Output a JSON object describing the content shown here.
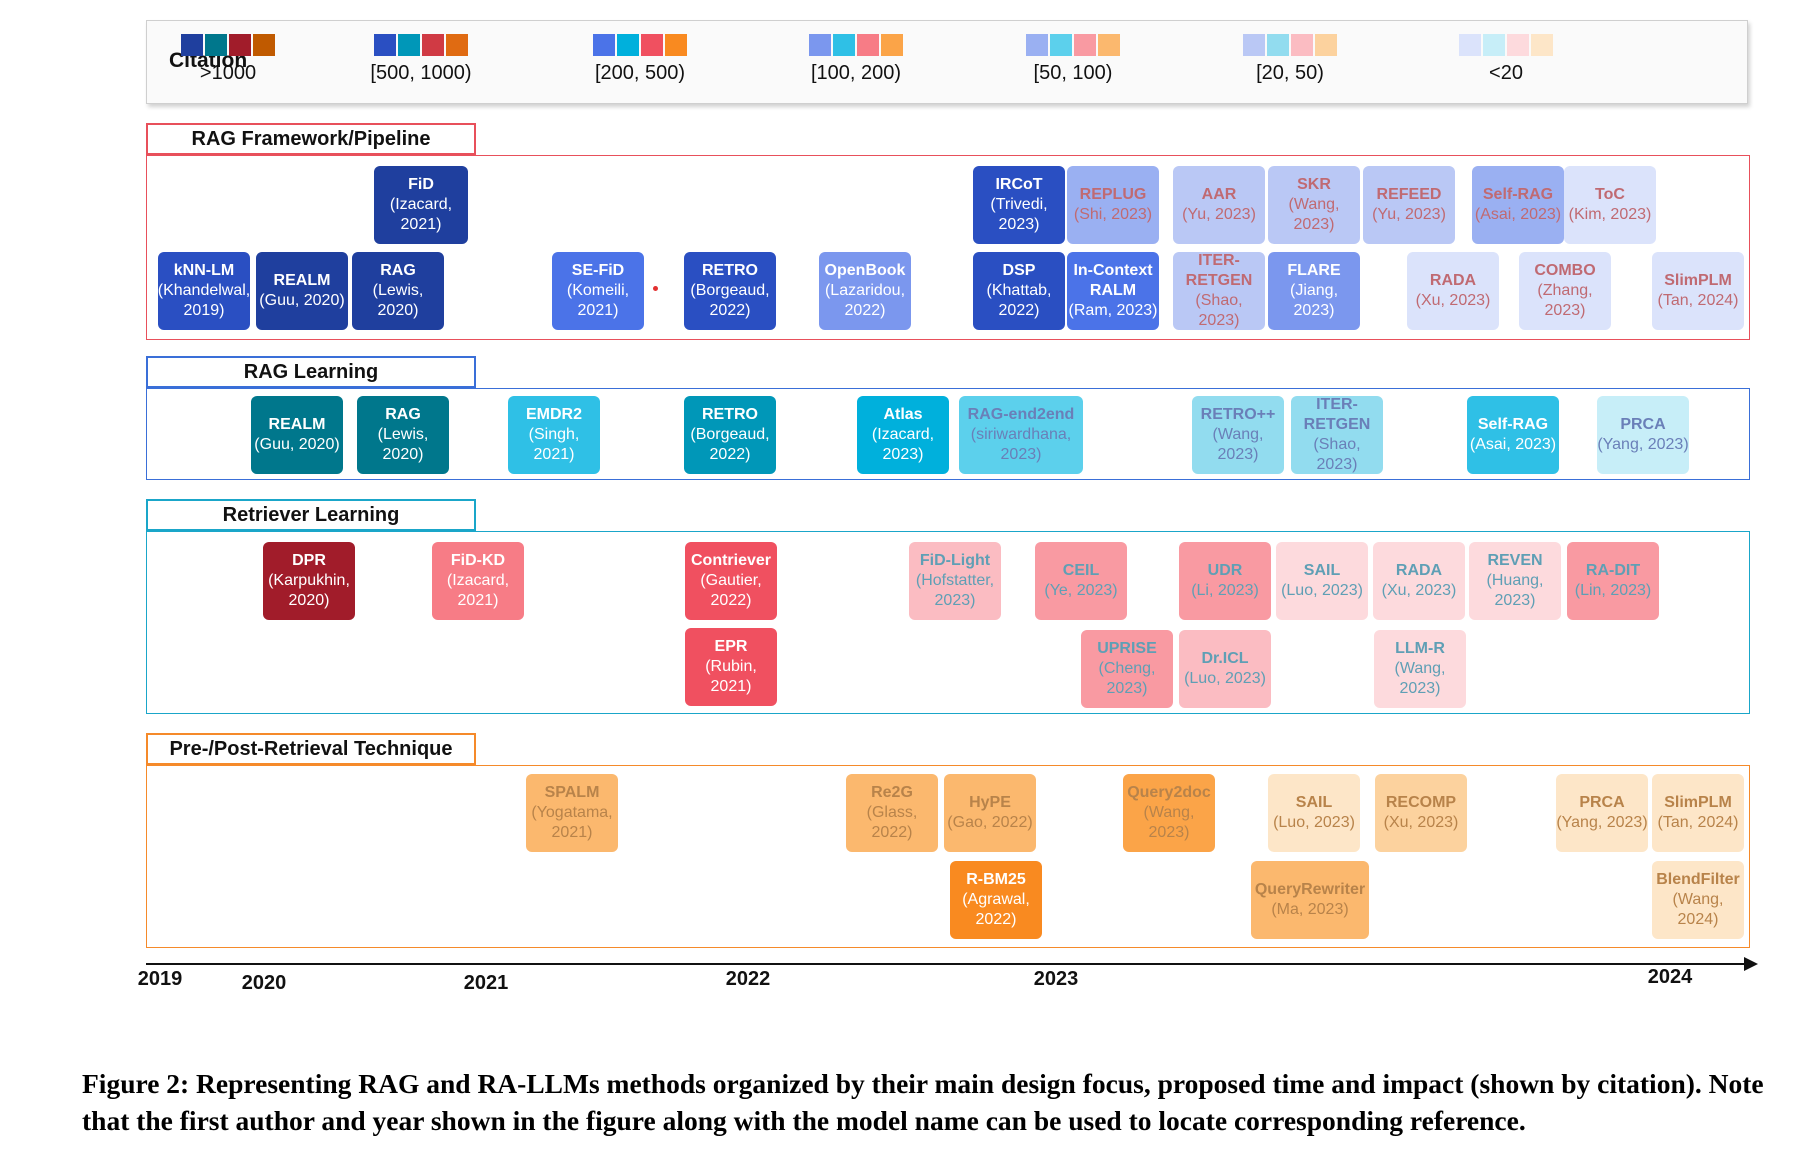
{
  "legend": {
    "title": "Citation",
    "tiers": [
      {
        "label": ">1000",
        "colors": [
          "#1f3f9e",
          "#00778c",
          "#a11c2a",
          "#c05a00"
        ]
      },
      {
        "label": "[500, 1000)",
        "colors": [
          "#2a4fc2",
          "#0097b8",
          "#d03a44",
          "#e06b12"
        ]
      },
      {
        "label": "[200, 500)",
        "colors": [
          "#4b73e8",
          "#00b0dc",
          "#f05060",
          "#f98a20"
        ]
      },
      {
        "label": "[100, 200)",
        "colors": [
          "#7b97ee",
          "#2fc0e6",
          "#f77c86",
          "#fba448"
        ]
      },
      {
        "label": "[50, 100)",
        "colors": [
          "#9ab0f2",
          "#5cd0ec",
          "#f99aa2",
          "#fbb86e"
        ]
      },
      {
        "label": "[20, 50)",
        "colors": [
          "#bac8f5",
          "#92dcef",
          "#fbbcc2",
          "#fcd29e"
        ]
      },
      {
        "label": "<20",
        "colors": [
          "#dbe3fb",
          "#c7eef8",
          "#fddadd",
          "#fde6c8"
        ]
      }
    ]
  },
  "sections": [
    {
      "title": "RAG Framework/Pipeline",
      "color": "#e8505b",
      "nodes": [
        {
          "name": "FiD",
          "ref": "(Izacard, 2021)",
          "tier": 0
        },
        {
          "name": "kNN-LM",
          "ref": "(Khandelwal, 2019)",
          "tier": 1
        },
        {
          "name": "REALM",
          "ref": "(Guu, 2020)",
          "tier": 0
        },
        {
          "name": "RAG",
          "ref": "(Lewis, 2020)",
          "tier": 0
        },
        {
          "name": "SE-FiD",
          "ref": "(Komeili, 2021)",
          "tier": 2
        },
        {
          "name": "RETRO",
          "ref": "(Borgeaud, 2022)",
          "tier": 1
        },
        {
          "name": "OpenBook",
          "ref": "(Lazaridou, 2022)",
          "tier": 3
        },
        {
          "name": "IRCoT",
          "ref": "(Trivedi, 2023)",
          "tier": 1
        },
        {
          "name": "DSP",
          "ref": "(Khattab, 2022)",
          "tier": 1
        },
        {
          "name": "REPLUG",
          "ref": "(Shi, 2023)",
          "tier": 4
        },
        {
          "name": "In-Context RALM",
          "ref": "(Ram, 2023)",
          "tier": 2
        },
        {
          "name": "AAR",
          "ref": "(Yu, 2023)",
          "tier": 5
        },
        {
          "name": "ITER-RETGEN",
          "ref": "(Shao, 2023)",
          "tier": 5
        },
        {
          "name": "SKR",
          "ref": "(Wang, 2023)",
          "tier": 5
        },
        {
          "name": "FLARE",
          "ref": "(Jiang, 2023)",
          "tier": 3
        },
        {
          "name": "REFEED",
          "ref": "(Yu, 2023)",
          "tier": 5
        },
        {
          "name": "RADA",
          "ref": "(Xu, 2023)",
          "tier": 6
        },
        {
          "name": "Self-RAG",
          "ref": "(Asai, 2023)",
          "tier": 4
        },
        {
          "name": "ToC",
          "ref": "(Kim, 2023)",
          "tier": 6
        },
        {
          "name": "COMBO",
          "ref": "(Zhang, 2023)",
          "tier": 6
        },
        {
          "name": "SlimPLM",
          "ref": "(Tan, 2024)",
          "tier": 6
        }
      ]
    },
    {
      "title": "RAG Learning",
      "color": "#3a6fd8",
      "nodes": [
        {
          "name": "REALM",
          "ref": "(Guu, 2020)",
          "tier": 0
        },
        {
          "name": "RAG",
          "ref": "(Lewis, 2020)",
          "tier": 0
        },
        {
          "name": "EMDR2",
          "ref": "(Singh, 2021)",
          "tier": 3
        },
        {
          "name": "RETRO",
          "ref": "(Borgeaud, 2022)",
          "tier": 1
        },
        {
          "name": "Atlas",
          "ref": "(Izacard, 2023)",
          "tier": 2
        },
        {
          "name": "RAG-end2end",
          "ref": "(siriwardhana, 2023)",
          "tier": 4
        },
        {
          "name": "RETRO++",
          "ref": "(Wang, 2023)",
          "tier": 5
        },
        {
          "name": "ITER-RETGEN",
          "ref": "(Shao, 2023)",
          "tier": 5
        },
        {
          "name": "Self-RAG",
          "ref": "(Asai, 2023)",
          "tier": 3
        },
        {
          "name": "PRCA",
          "ref": "(Yang, 2023)",
          "tier": 6
        }
      ]
    },
    {
      "title": "Retriever Learning",
      "color": "#1aa6c9",
      "nodes": [
        {
          "name": "DPR",
          "ref": "(Karpukhin, 2020)",
          "tier": 0
        },
        {
          "name": "FiD-KD",
          "ref": "(Izacard, 2021)",
          "tier": 3
        },
        {
          "name": "Contriever",
          "ref": "(Gautier, 2022)",
          "tier": 2
        },
        {
          "name": "EPR",
          "ref": "(Rubin, 2021)",
          "tier": 2
        },
        {
          "name": "FiD-Light",
          "ref": "(Hofstatter, 2023)",
          "tier": 5
        },
        {
          "name": "CEIL",
          "ref": "(Ye, 2023)",
          "tier": 4
        },
        {
          "name": "UPRISE",
          "ref": "(Cheng, 2023)",
          "tier": 4
        },
        {
          "name": "UDR",
          "ref": "(Li, 2023)",
          "tier": 4
        },
        {
          "name": "Dr.ICL",
          "ref": "(Luo, 2023)",
          "tier": 5
        },
        {
          "name": "SAIL",
          "ref": "(Luo, 2023)",
          "tier": 6
        },
        {
          "name": "RADA",
          "ref": "(Xu, 2023)",
          "tier": 6
        },
        {
          "name": "LLM-R",
          "ref": "(Wang, 2023)",
          "tier": 6
        },
        {
          "name": "REVEN",
          "ref": "(Huang, 2023)",
          "tier": 6
        },
        {
          "name": "RA-DIT",
          "ref": "(Lin, 2023)",
          "tier": 4
        }
      ]
    },
    {
      "title": "Pre-/Post-Retrieval Technique",
      "color": "#f58a2a",
      "nodes": [
        {
          "name": "SPALM",
          "ref": "(Yogatama, 2021)",
          "tier": 4
        },
        {
          "name": "Re2G",
          "ref": "(Glass, 2022)",
          "tier": 4
        },
        {
          "name": "HyPE",
          "ref": "(Gao, 2022)",
          "tier": 4
        },
        {
          "name": "R-BM25",
          "ref": "(Agrawal, 2022)",
          "tier": 2
        },
        {
          "name": "Query2doc",
          "ref": "(Wang, 2023)",
          "tier": 3
        },
        {
          "name": "SAIL",
          "ref": "(Luo, 2023)",
          "tier": 6
        },
        {
          "name": "QueryRewriter",
          "ref": "(Ma, 2023)",
          "tier": 4
        },
        {
          "name": "RECOMP",
          "ref": "(Xu, 2023)",
          "tier": 5
        },
        {
          "name": "PRCA",
          "ref": "(Yang, 2023)",
          "tier": 6
        },
        {
          "name": "SlimPLM",
          "ref": "(Tan, 2024)",
          "tier": 6
        },
        {
          "name": "BlendFilter",
          "ref": "(Wang, 2024)",
          "tier": 6
        }
      ]
    }
  ],
  "timeline": [
    "2019",
    "2020",
    "2021",
    "2022",
    "2023",
    "2024"
  ],
  "caption": "Figure 2: Representing RAG and RA-LLMs methods organized by their main design focus, proposed time and impact (shown by citation). Note that the first author and year shown in the figure along with the model name can be used to locate corresponding reference."
}
